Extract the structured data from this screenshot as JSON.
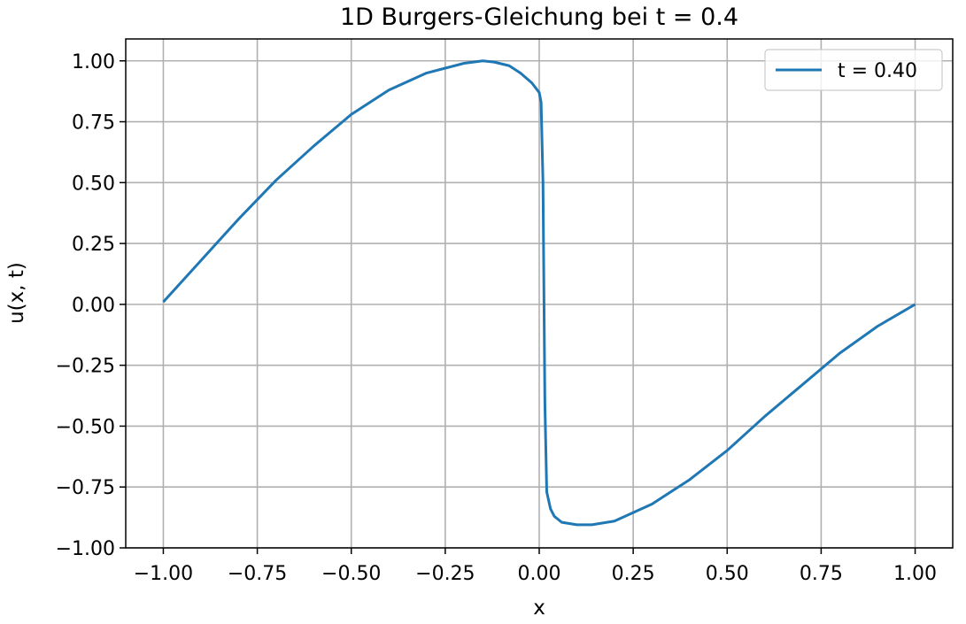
{
  "chart_data": {
    "type": "line",
    "title": "1D Burgers-Gleichung bei t = 0.4",
    "xlabel": "x",
    "ylabel": "u(x, t)",
    "xlim": [
      -1.1,
      1.1
    ],
    "ylim": [
      -1.0,
      1.09
    ],
    "x_ticks": [
      -1.0,
      -0.75,
      -0.5,
      -0.25,
      0.0,
      0.25,
      0.5,
      0.75,
      1.0
    ],
    "x_tick_labels": [
      "−1.00",
      "−0.75",
      "−0.50",
      "−0.25",
      "0.00",
      "0.25",
      "0.50",
      "0.75",
      "1.00"
    ],
    "y_ticks": [
      -1.0,
      -0.75,
      -0.5,
      -0.25,
      0.0,
      0.25,
      0.5,
      0.75,
      1.0
    ],
    "y_tick_labels": [
      "−1.00",
      "−0.75",
      "−0.50",
      "−0.25",
      "0.00",
      "0.25",
      "0.50",
      "0.75",
      "1.00"
    ],
    "grid": true,
    "legend_position": "top-right",
    "series": [
      {
        "name": "t = 0.40",
        "color": "#1f77b4",
        "x": [
          -1.0,
          -0.9,
          -0.8,
          -0.7,
          -0.6,
          -0.5,
          -0.4,
          -0.3,
          -0.25,
          -0.2,
          -0.15,
          -0.12,
          -0.08,
          -0.05,
          -0.02,
          0.0,
          0.005,
          0.01,
          0.015,
          0.02,
          0.03,
          0.04,
          0.06,
          0.1,
          0.14,
          0.2,
          0.3,
          0.4,
          0.5,
          0.6,
          0.7,
          0.8,
          0.9,
          1.0
        ],
        "y": [
          0.01,
          0.18,
          0.35,
          0.51,
          0.65,
          0.78,
          0.88,
          0.95,
          0.97,
          0.99,
          1.0,
          0.995,
          0.98,
          0.95,
          0.91,
          0.87,
          0.83,
          0.5,
          -0.4,
          -0.77,
          -0.84,
          -0.87,
          -0.895,
          -0.905,
          -0.905,
          -0.89,
          -0.82,
          -0.72,
          -0.6,
          -0.46,
          -0.33,
          -0.2,
          -0.09,
          0.0
        ]
      }
    ]
  }
}
